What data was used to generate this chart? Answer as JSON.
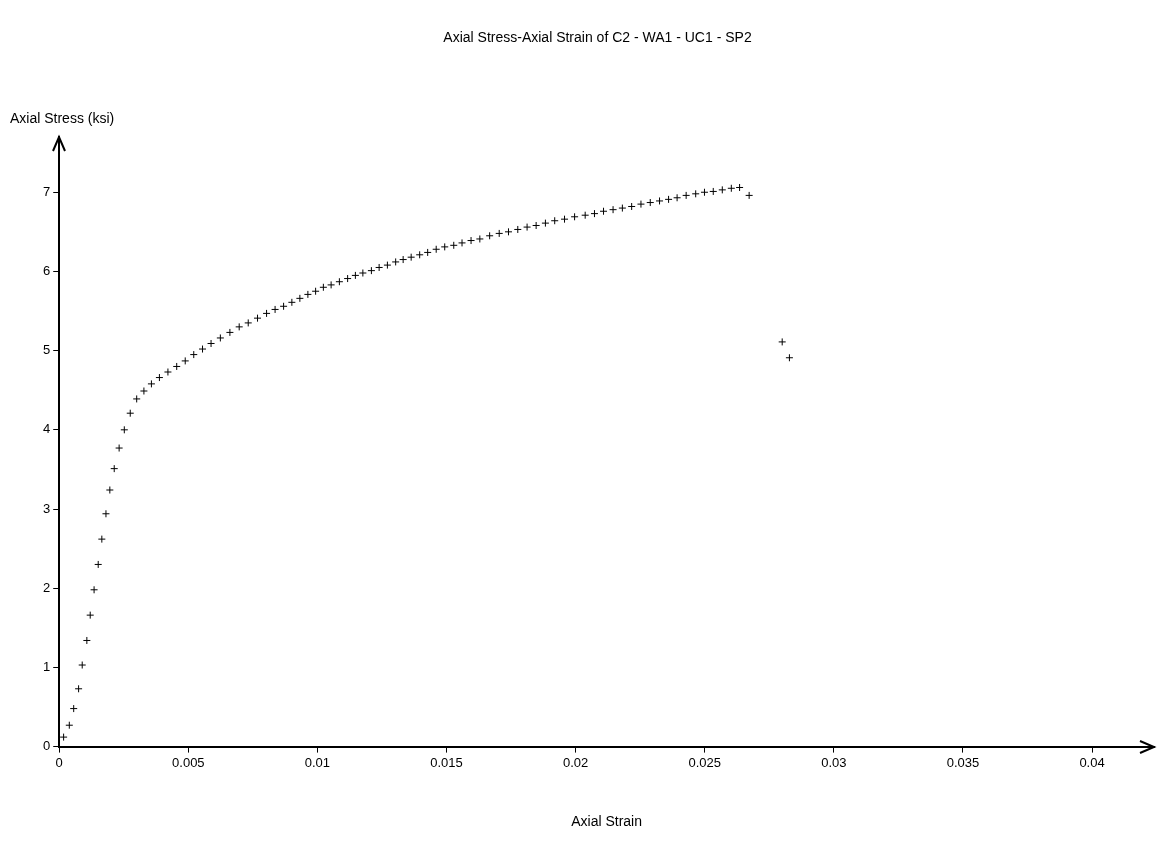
{
  "chart_data": {
    "type": "scatter",
    "title": "Axial Stress-Axial Strain of C2 - WA1 - UC1 - SP2",
    "xlabel": "Axial Strain",
    "ylabel": "Axial Stress (ksi)",
    "marker": "cross",
    "legend": false,
    "xlim": [
      0,
      0.0424
    ],
    "ylim": [
      0,
      7.7
    ],
    "xticks": [
      0,
      0.005,
      0.01,
      0.015,
      0.02,
      0.025,
      0.03,
      0.035,
      0.04
    ],
    "yticks": [
      0,
      1,
      2,
      3,
      4,
      5,
      6,
      7
    ],
    "series": [
      {
        "color": "#000000",
        "x": [
          0.00017,
          0.00039,
          0.00056,
          0.00075,
          0.00089,
          0.00107,
          0.0012,
          0.00135,
          0.00151,
          0.00165,
          0.00181,
          0.00196,
          0.00213,
          0.00232,
          0.00252,
          0.00275,
          0.003,
          0.00328,
          0.00357,
          0.00388,
          0.00421,
          0.00455,
          0.00488,
          0.00521,
          0.00555,
          0.00588,
          0.00624,
          0.00661,
          0.00697,
          0.00732,
          0.00768,
          0.00803,
          0.00836,
          0.00869,
          0.00901,
          0.00932,
          0.00963,
          0.00993,
          0.01023,
          0.01053,
          0.01085,
          0.01117,
          0.01147,
          0.01176,
          0.01209,
          0.01239,
          0.01271,
          0.01303,
          0.01332,
          0.01363,
          0.01396,
          0.01427,
          0.0146,
          0.01493,
          0.01528,
          0.0156,
          0.01595,
          0.01629,
          0.01667,
          0.01704,
          0.0174,
          0.01776,
          0.01812,
          0.01847,
          0.01883,
          0.01919,
          0.01957,
          0.01996,
          0.02037,
          0.02073,
          0.02108,
          0.02145,
          0.02181,
          0.02217,
          0.02253,
          0.02289,
          0.02325,
          0.0236,
          0.02393,
          0.02428,
          0.02465,
          0.02499,
          0.02533,
          0.02568,
          0.02603,
          0.02635,
          0.02672,
          0.028,
          0.02828
        ],
        "values": [
          0.12,
          0.27,
          0.48,
          0.73,
          1.03,
          1.34,
          1.66,
          1.98,
          2.3,
          2.62,
          2.94,
          3.24,
          3.51,
          3.77,
          4.0,
          4.21,
          4.39,
          4.49,
          4.58,
          4.66,
          4.73,
          4.8,
          4.87,
          4.95,
          5.02,
          5.09,
          5.16,
          5.23,
          5.3,
          5.35,
          5.41,
          5.47,
          5.52,
          5.56,
          5.61,
          5.66,
          5.71,
          5.75,
          5.8,
          5.83,
          5.87,
          5.91,
          5.95,
          5.98,
          6.01,
          6.05,
          6.08,
          6.12,
          6.15,
          6.18,
          6.21,
          6.24,
          6.28,
          6.31,
          6.33,
          6.36,
          6.39,
          6.41,
          6.45,
          6.48,
          6.5,
          6.53,
          6.56,
          6.58,
          6.61,
          6.64,
          6.66,
          6.69,
          6.71,
          6.73,
          6.76,
          6.78,
          6.8,
          6.82,
          6.85,
          6.87,
          6.89,
          6.91,
          6.93,
          6.96,
          6.98,
          7.0,
          7.01,
          7.03,
          7.05,
          7.06,
          6.96,
          5.11,
          4.91
        ]
      }
    ]
  }
}
